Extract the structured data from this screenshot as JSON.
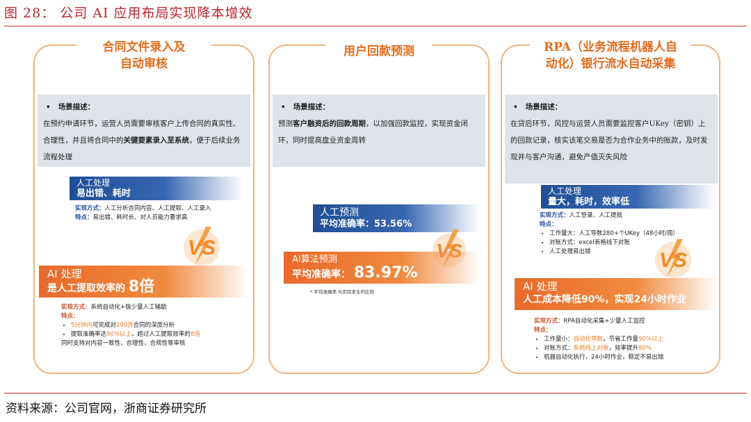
{
  "figure": {
    "title": "图 28：  公司 AI 应用布局实现降本增效",
    "source": "资料来源：公司官网，浙商证券研究所"
  },
  "cards": [
    {
      "title_line1": "合同文件录入及",
      "title_line2": "自动审核",
      "desc_heading": "场景描述：",
      "desc_part1": "在预约申请环节，运营人员需要审核客户上传合同的真实性、合理性，并且将合同中的",
      "desc_bold": "关键要素录入至系统",
      "desc_part2": "，便于后续业务流程处理",
      "manual_label": "人工处理",
      "manual_headline": "易出错、耗时",
      "manual_method_key": "实现方式：",
      "manual_method": "人工分析合同内容、人工提取、人工录入",
      "manual_feat_key": "特点：",
      "manual_feat": "易出错、耗时长、对人员能力要求高",
      "vs": "VS",
      "ai_label": "AI 处理",
      "ai_headline": "是人工提取效率的",
      "ai_big": "8倍",
      "ai_method_key": "实现方式：",
      "ai_method": "系统自动化+极少量人工辅助",
      "ai_feat_key": "特点：",
      "ai_b1_hl": "5分钟内",
      "ai_b1_a": "可完成对",
      "ai_b1_hl2": "200页",
      "ai_b1_b": "合同的深度分析",
      "ai_b2_a": "提取准确率达",
      "ai_b2_hl": "90%以上",
      "ai_b2_b": "，超过人工提取效率的",
      "ai_b2_hl2": "8倍",
      "ai_b2_c": "同时支持对内容一致性、合理性、合规性等审核"
    },
    {
      "title_line1": "用户回款预测",
      "desc_heading": "场景描述：",
      "desc_part1": "预测",
      "desc_bold": "客户融资后的回款周期",
      "desc_part2": "，以加强回款监控，实现资金闭环，同时提高盘业资金周转",
      "manual_label": "人工预测",
      "manual_headline": "平均准确率：53.56%",
      "vs": "VS",
      "ai_label": "AI算法预测",
      "ai_headline": "平均准确率：",
      "ai_big": "83.97%",
      "note": "* 平均准确率:与实际发生的比较"
    },
    {
      "title_line1": "RPA（业务流程机器人自",
      "title_line2": "动化）银行流水自动采集",
      "desc_heading": "场景描述：",
      "desc_text": "在贷后环节，风控与运营人员需要监控客户UKey（密钥）上的回款记录，核实该笔交易是否为合作业务中的账款，及时发现并与客户沟通，避免产值灭失风险",
      "manual_label": "人工处理",
      "manual_headline": "量大，耗时，效率低",
      "manual_method_key": "实现方式：",
      "manual_method": "人工登录、人工提款",
      "manual_feat_key": "特点：",
      "manual_feats": [
        "工作量大：人工导数280+个UKey（48小时/周）",
        "对账方式：excel表格线下对账",
        "人工处理易出错"
      ],
      "vs": "VS",
      "ai_label": "AI 处理",
      "ai_headline": "人工成本降低90%，实现24小时作业",
      "ai_method_key": "实现方式：",
      "ai_method": "RPA自动化采集+少量人工监控",
      "ai_feat_key": "特点：",
      "ai_b1_a": "工作量小：",
      "ai_b1_hl": "自动化导数",
      "ai_b1_b": "，节省工作量",
      "ai_b1_hl2": "90%以上",
      "ai_b2_a": "对账方式：",
      "ai_b2_hl": "系统线上对账",
      "ai_b2_b": "，效率提升",
      "ai_b2_hl2": "80%",
      "ai_b3": "机器自动化执行，24小时作业，稳定不易出错"
    }
  ],
  "colors": {
    "accent_red": "#b8262f",
    "orange": "#e9692a",
    "blue": "#1f4e96",
    "card_border": "#f3b27a"
  }
}
